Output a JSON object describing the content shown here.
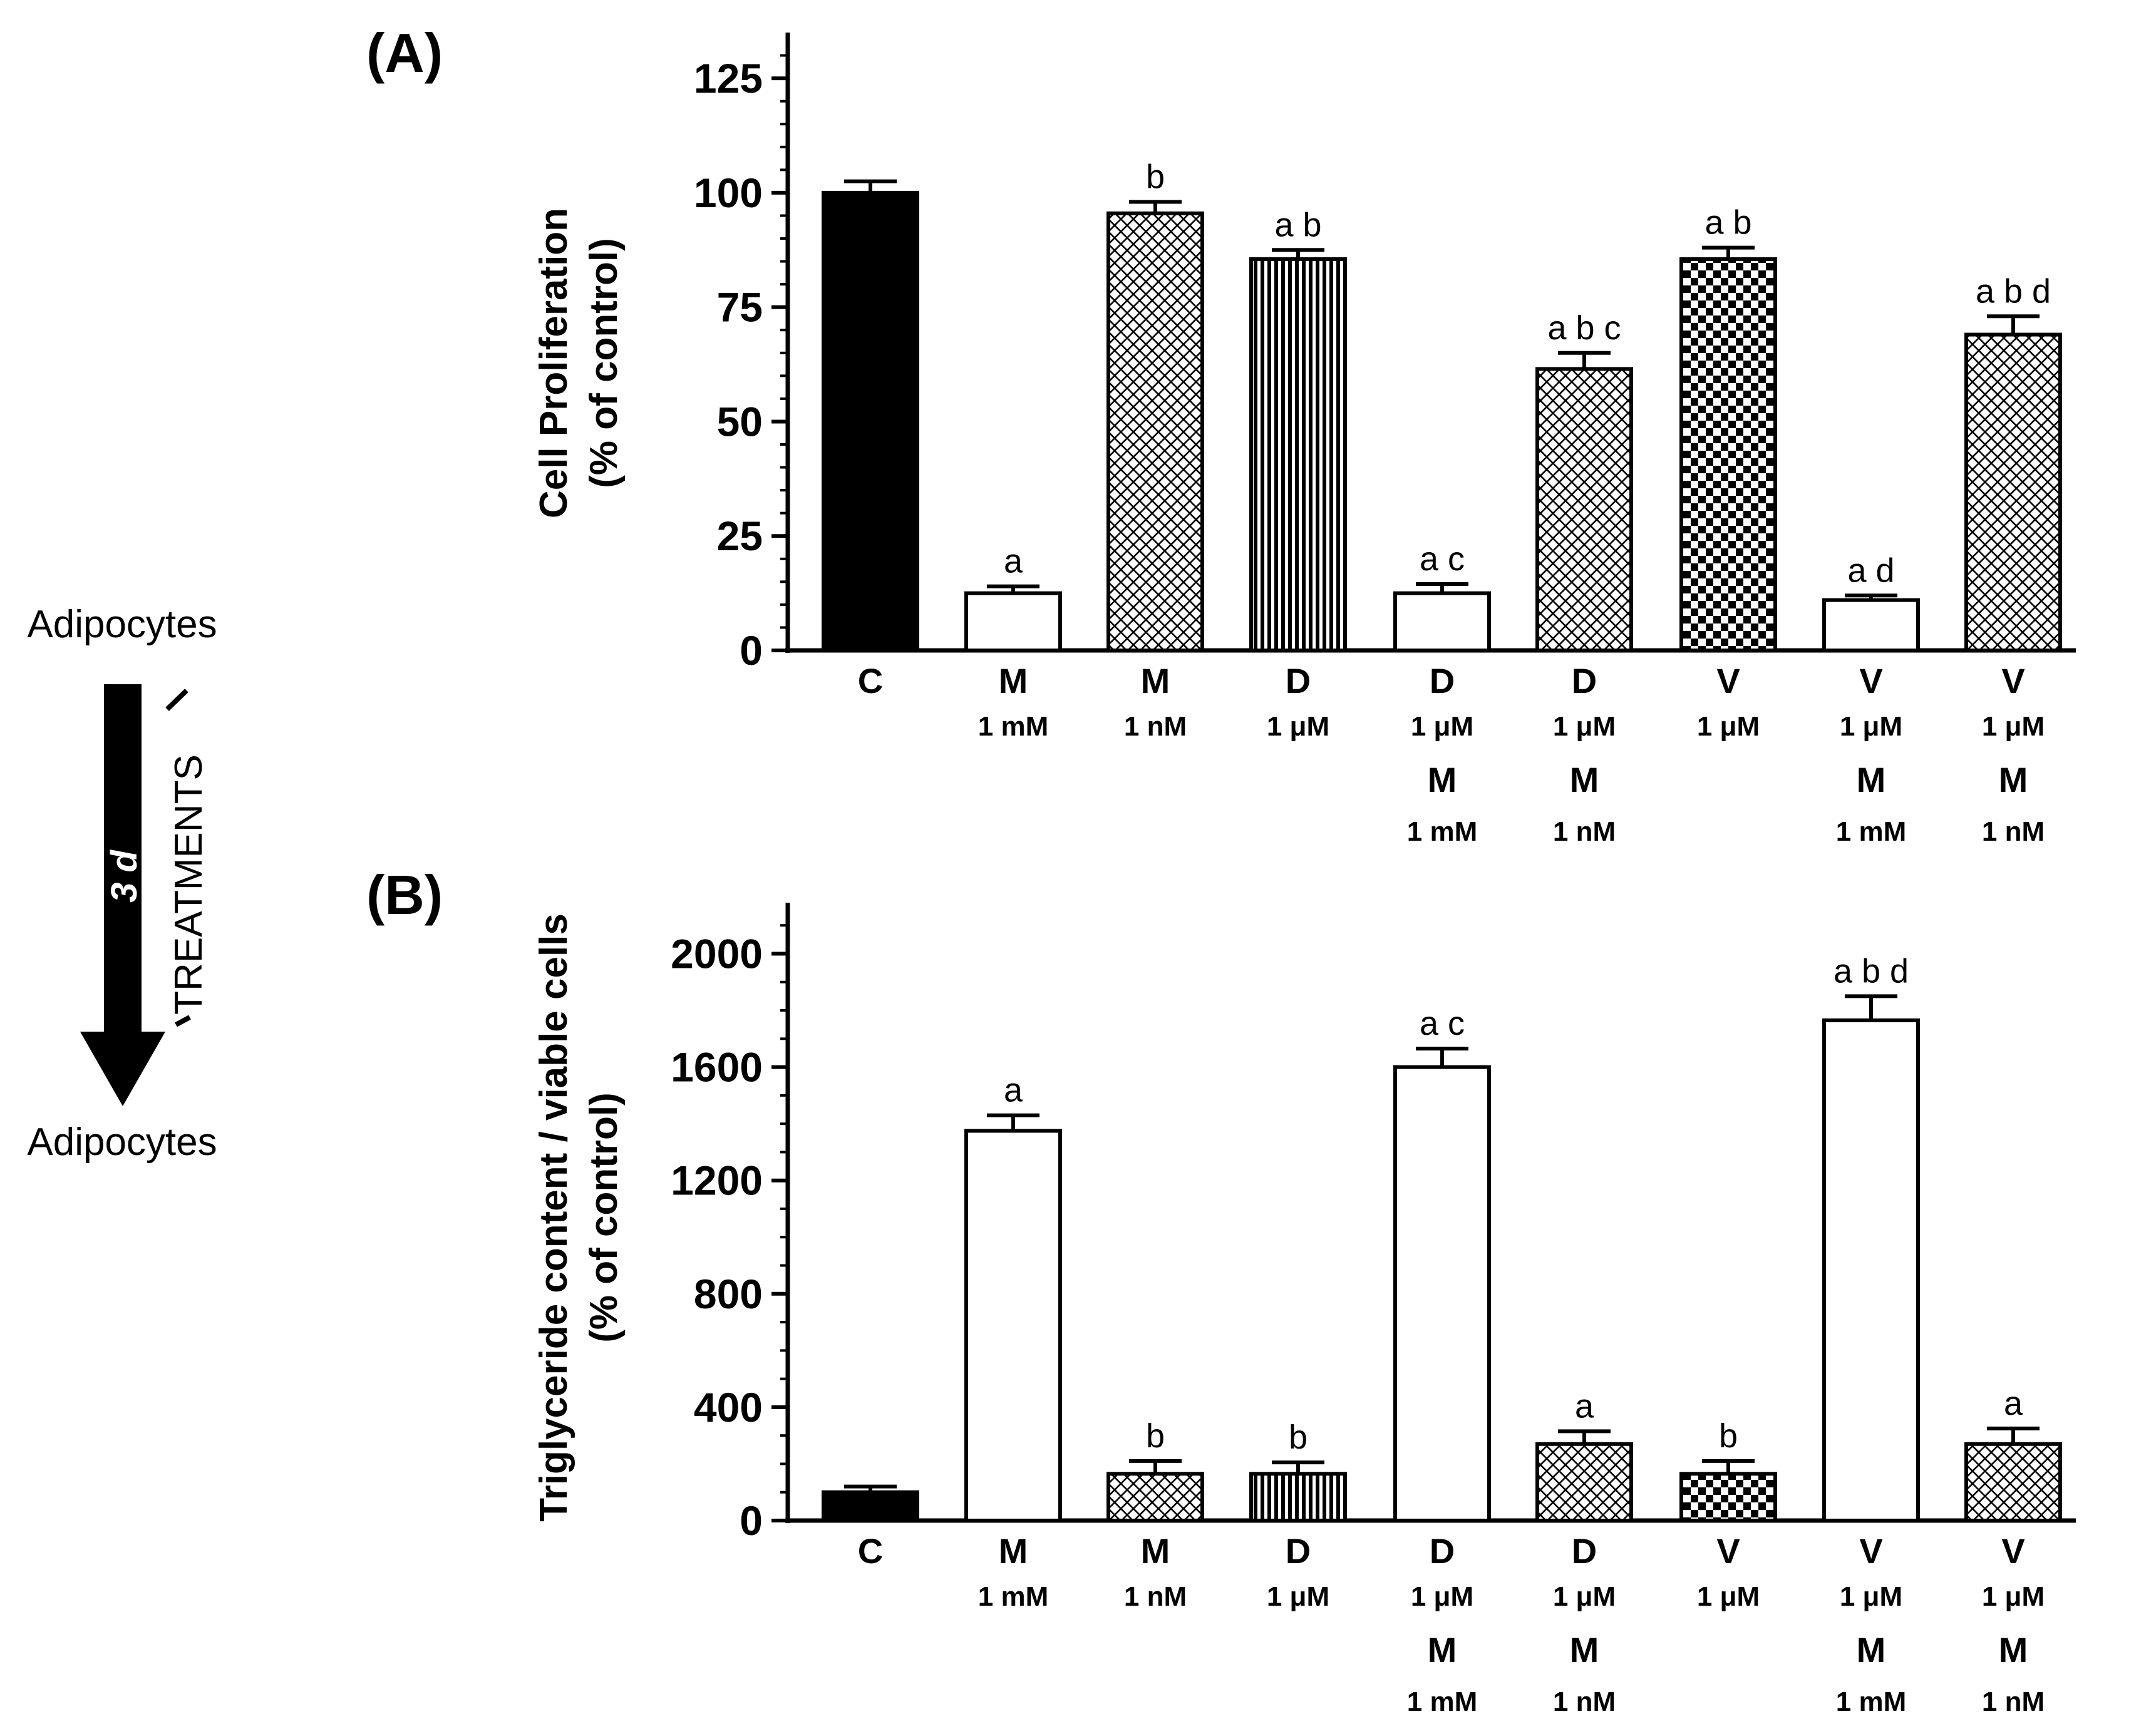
{
  "scheme": {
    "top_label": "Adipocytes",
    "bottom_label": "Adipocytes",
    "duration_label": "3 d",
    "treatment_label": "TREATMENTS"
  },
  "categories": [
    [
      "C"
    ],
    [
      "M",
      "1 mM"
    ],
    [
      "M",
      "1 nM"
    ],
    [
      "D",
      "1 μM"
    ],
    [
      "D",
      "1 μM",
      "M",
      "1 mM"
    ],
    [
      "D",
      "1 μM",
      "M",
      "1 nM"
    ],
    [
      "V",
      "1 μM"
    ],
    [
      "V",
      "1 μM",
      "M",
      "1 mM"
    ],
    [
      "V",
      "1 μM",
      "M",
      "1 nM"
    ]
  ],
  "chart_data": [
    {
      "type": "bar",
      "panel_label": "(A)",
      "ylabel_line1": "Cell Proliferation",
      "ylabel_line2": "(% of control)",
      "ylim": [
        0,
        135
      ],
      "yticks": [
        0,
        25,
        50,
        75,
        100,
        125
      ],
      "values": [
        100,
        12.5,
        95.5,
        85.5,
        12.5,
        61.5,
        85.5,
        11,
        69
      ],
      "errors": [
        2.5,
        1.5,
        2.5,
        2,
        2,
        3.5,
        2.5,
        1,
        4
      ],
      "letters": [
        "",
        "a",
        "b",
        "a b",
        "a c",
        "a b c",
        "a b",
        "a d",
        "a b d"
      ],
      "patterns": [
        "solid",
        "white",
        "crosshatch",
        "vstripes",
        "white",
        "crosshatch",
        "checker",
        "white",
        "crosshatch"
      ]
    },
    {
      "type": "bar",
      "panel_label": "(B)",
      "ylabel_line1": "Triglyceride content / viable cells",
      "ylabel_line2": "(% of control)",
      "ylim": [
        0,
        2180
      ],
      "yticks": [
        0,
        400,
        800,
        1200,
        1600,
        2000
      ],
      "values": [
        100,
        1375,
        165,
        165,
        1600,
        270,
        165,
        1765,
        270
      ],
      "errors": [
        20,
        55,
        45,
        40,
        65,
        45,
        45,
        85,
        55
      ],
      "letters": [
        "",
        "a",
        "b",
        "b",
        "a c",
        "a",
        "b",
        "a b d",
        "a"
      ],
      "patterns": [
        "solid",
        "white",
        "crosshatch",
        "vstripes",
        "white",
        "crosshatch",
        "checker",
        "white",
        "crosshatch"
      ]
    }
  ],
  "colors": {
    "ink": "#000000",
    "paper": "#ffffff"
  }
}
